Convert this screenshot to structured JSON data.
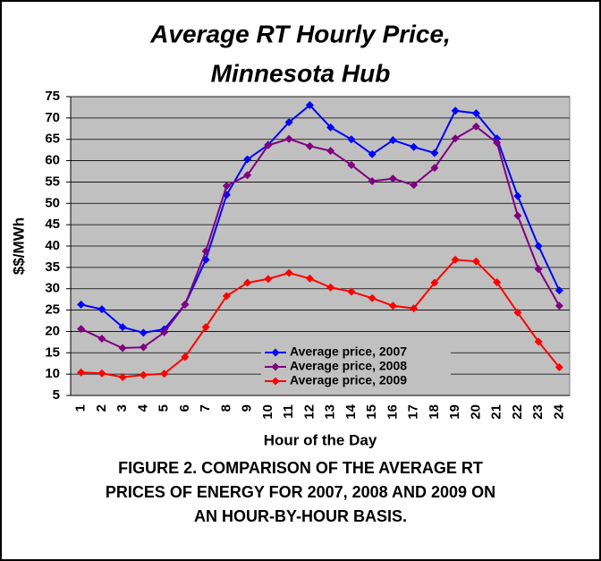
{
  "chart_data": {
    "type": "line",
    "title": [
      "Average RT Hourly Price,",
      "Minnesota Hub"
    ],
    "xlabel": "Hour of the Day",
    "ylabel": "$$/MWh",
    "categories": [
      "1",
      "2",
      "3",
      "4",
      "5",
      "6",
      "7",
      "8",
      "9",
      "10",
      "11",
      "12",
      "13",
      "14",
      "15",
      "16",
      "17",
      "18",
      "19",
      "20",
      "21",
      "22",
      "23",
      "24"
    ],
    "series": [
      {
        "name": "Average price, 2007",
        "color": "#0000ff",
        "values": [
          26.3,
          25.2,
          21,
          19.7,
          20.5,
          26.3,
          36.8,
          52,
          60.3,
          63.7,
          69,
          73,
          67.8,
          65,
          61.5,
          64.8,
          63.2,
          61.8,
          71.7,
          71.1,
          65.2,
          51.7,
          40,
          29.6
        ]
      },
      {
        "name": "Average price, 2008",
        "color": "#800080",
        "values": [
          20.6,
          18.3,
          16.1,
          16.3,
          19.8,
          26.3,
          38.8,
          54.1,
          56.6,
          63.6,
          65.1,
          63.4,
          62.3,
          59,
          55.2,
          55.8,
          54.3,
          58.3,
          65.2,
          68,
          64.2,
          47.1,
          34.6,
          26
        ]
      },
      {
        "name": "Average price, 2009",
        "color": "#ff0000",
        "values": [
          10.4,
          10.2,
          9.3,
          9.8,
          10.1,
          14,
          21,
          28.3,
          31.4,
          32.3,
          33.7,
          32.4,
          30.3,
          29.3,
          27.8,
          26,
          25.4,
          31.4,
          36.8,
          36.4,
          31.5,
          24.4,
          17.6,
          11.6
        ]
      }
    ],
    "ylim": [
      5,
      75
    ],
    "yticks": [
      5,
      10,
      15,
      20,
      25,
      30,
      35,
      40,
      45,
      50,
      55,
      60,
      65,
      70,
      75
    ],
    "grid": true,
    "caption": [
      "FIGURE 2.  COMPARISON OF THE AVERAGE RT",
      "PRICES OF ENERGY FOR 2007, 2008 AND 2009 ON",
      "AN HOUR-BY-HOUR BASIS."
    ]
  }
}
